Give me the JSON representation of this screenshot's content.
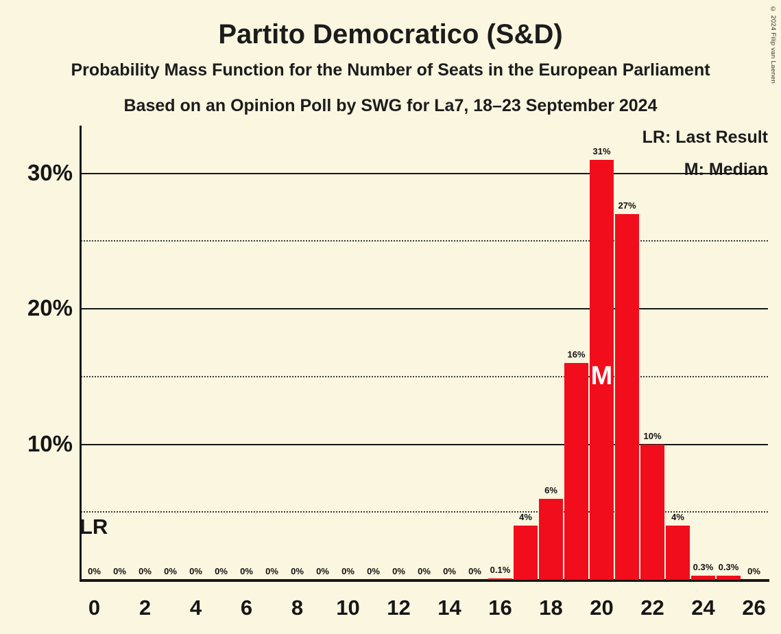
{
  "header": {
    "title": "Partito Democratico (S&D)",
    "subtitle1": "Probability Mass Function for the Number of Seats in the European Parliament",
    "subtitle2": "Based on an Opinion Poll by SWG for La7, 18–23 September 2024"
  },
  "legend": {
    "last_result": "LR: Last Result",
    "median": "M: Median"
  },
  "copyright": "© 2024 Filip van Laenen",
  "colors": {
    "background": "#fbf6df",
    "bar": "#f10d1c",
    "text": "#161616"
  },
  "chart_data": {
    "type": "bar",
    "title": "Partito Democratico (S&D)",
    "xlabel": "",
    "ylabel": "",
    "categories": [
      0,
      1,
      2,
      3,
      4,
      5,
      6,
      7,
      8,
      9,
      10,
      11,
      12,
      13,
      14,
      15,
      16,
      17,
      18,
      19,
      20,
      21,
      22,
      23,
      24,
      25,
      26
    ],
    "values": [
      0,
      0,
      0,
      0,
      0,
      0,
      0,
      0,
      0,
      0,
      0,
      0,
      0,
      0,
      0,
      0,
      0.1,
      4,
      6,
      16,
      31,
      27,
      10,
      4,
      0.3,
      0.3,
      0
    ],
    "bar_labels": [
      "0%",
      "0%",
      "0%",
      "0%",
      "0%",
      "0%",
      "0%",
      "0%",
      "0%",
      "0%",
      "0%",
      "0%",
      "0%",
      "0%",
      "0%",
      "0%",
      "0.1%",
      "4%",
      "6%",
      "16%",
      "31%",
      "27%",
      "10%",
      "4%",
      "0.3%",
      "0.3%",
      "0%"
    ],
    "x_tick_labels": [
      "0",
      "2",
      "4",
      "6",
      "8",
      "10",
      "12",
      "14",
      "16",
      "18",
      "20",
      "22",
      "24",
      "26"
    ],
    "x_tick_seats": [
      0,
      2,
      4,
      6,
      8,
      10,
      12,
      14,
      16,
      18,
      20,
      22,
      24,
      26
    ],
    "y_ticks": [
      {
        "value": 10,
        "label": "10%"
      },
      {
        "value": 20,
        "label": "20%"
      },
      {
        "value": 30,
        "label": "30%"
      }
    ],
    "solid_gridlines": [
      10,
      20,
      30
    ],
    "dotted_gridlines": [
      5,
      15,
      25
    ],
    "ylim": [
      0,
      33.5
    ],
    "grid": true,
    "legend_position": "top-right",
    "median": {
      "seat": 20,
      "label": "M"
    },
    "last_result": {
      "label": "LR"
    },
    "bar_color": "#f10d1c"
  }
}
